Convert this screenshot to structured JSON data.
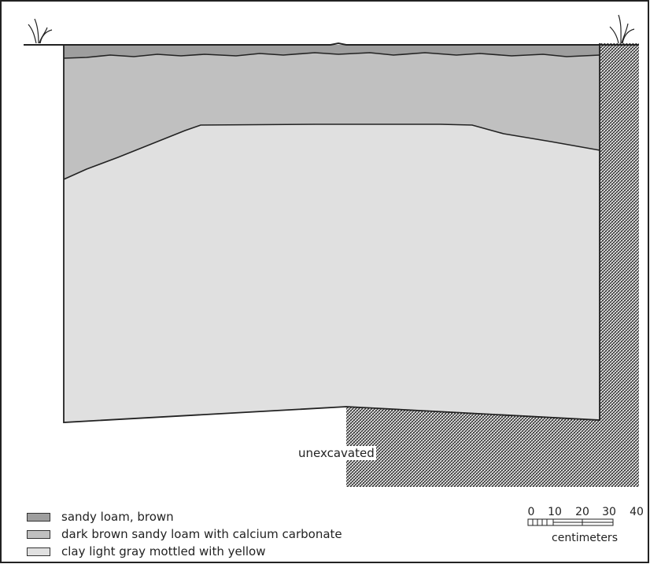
{
  "figure": {
    "unexcavated_label": "unexcavated"
  },
  "legend": {
    "items": [
      {
        "label": "sandy loam, brown",
        "color": "#9e9e9e"
      },
      {
        "label": "dark brown sandy loam with calcium carbonate",
        "color": "#c0c0c0"
      },
      {
        "label": "clay light gray mottled with yellow",
        "color": "#e0e0e0"
      }
    ]
  },
  "scale_bar": {
    "ticks": [
      "0",
      "10",
      "20",
      "30",
      "40"
    ],
    "unit": "centimeters"
  },
  "colors": {
    "sandy_loam": "#9e9e9e",
    "dark_brown_loam": "#c0c0c0",
    "clay": "#e0e0e0",
    "line": "#222222",
    "hatch": "#333333"
  }
}
